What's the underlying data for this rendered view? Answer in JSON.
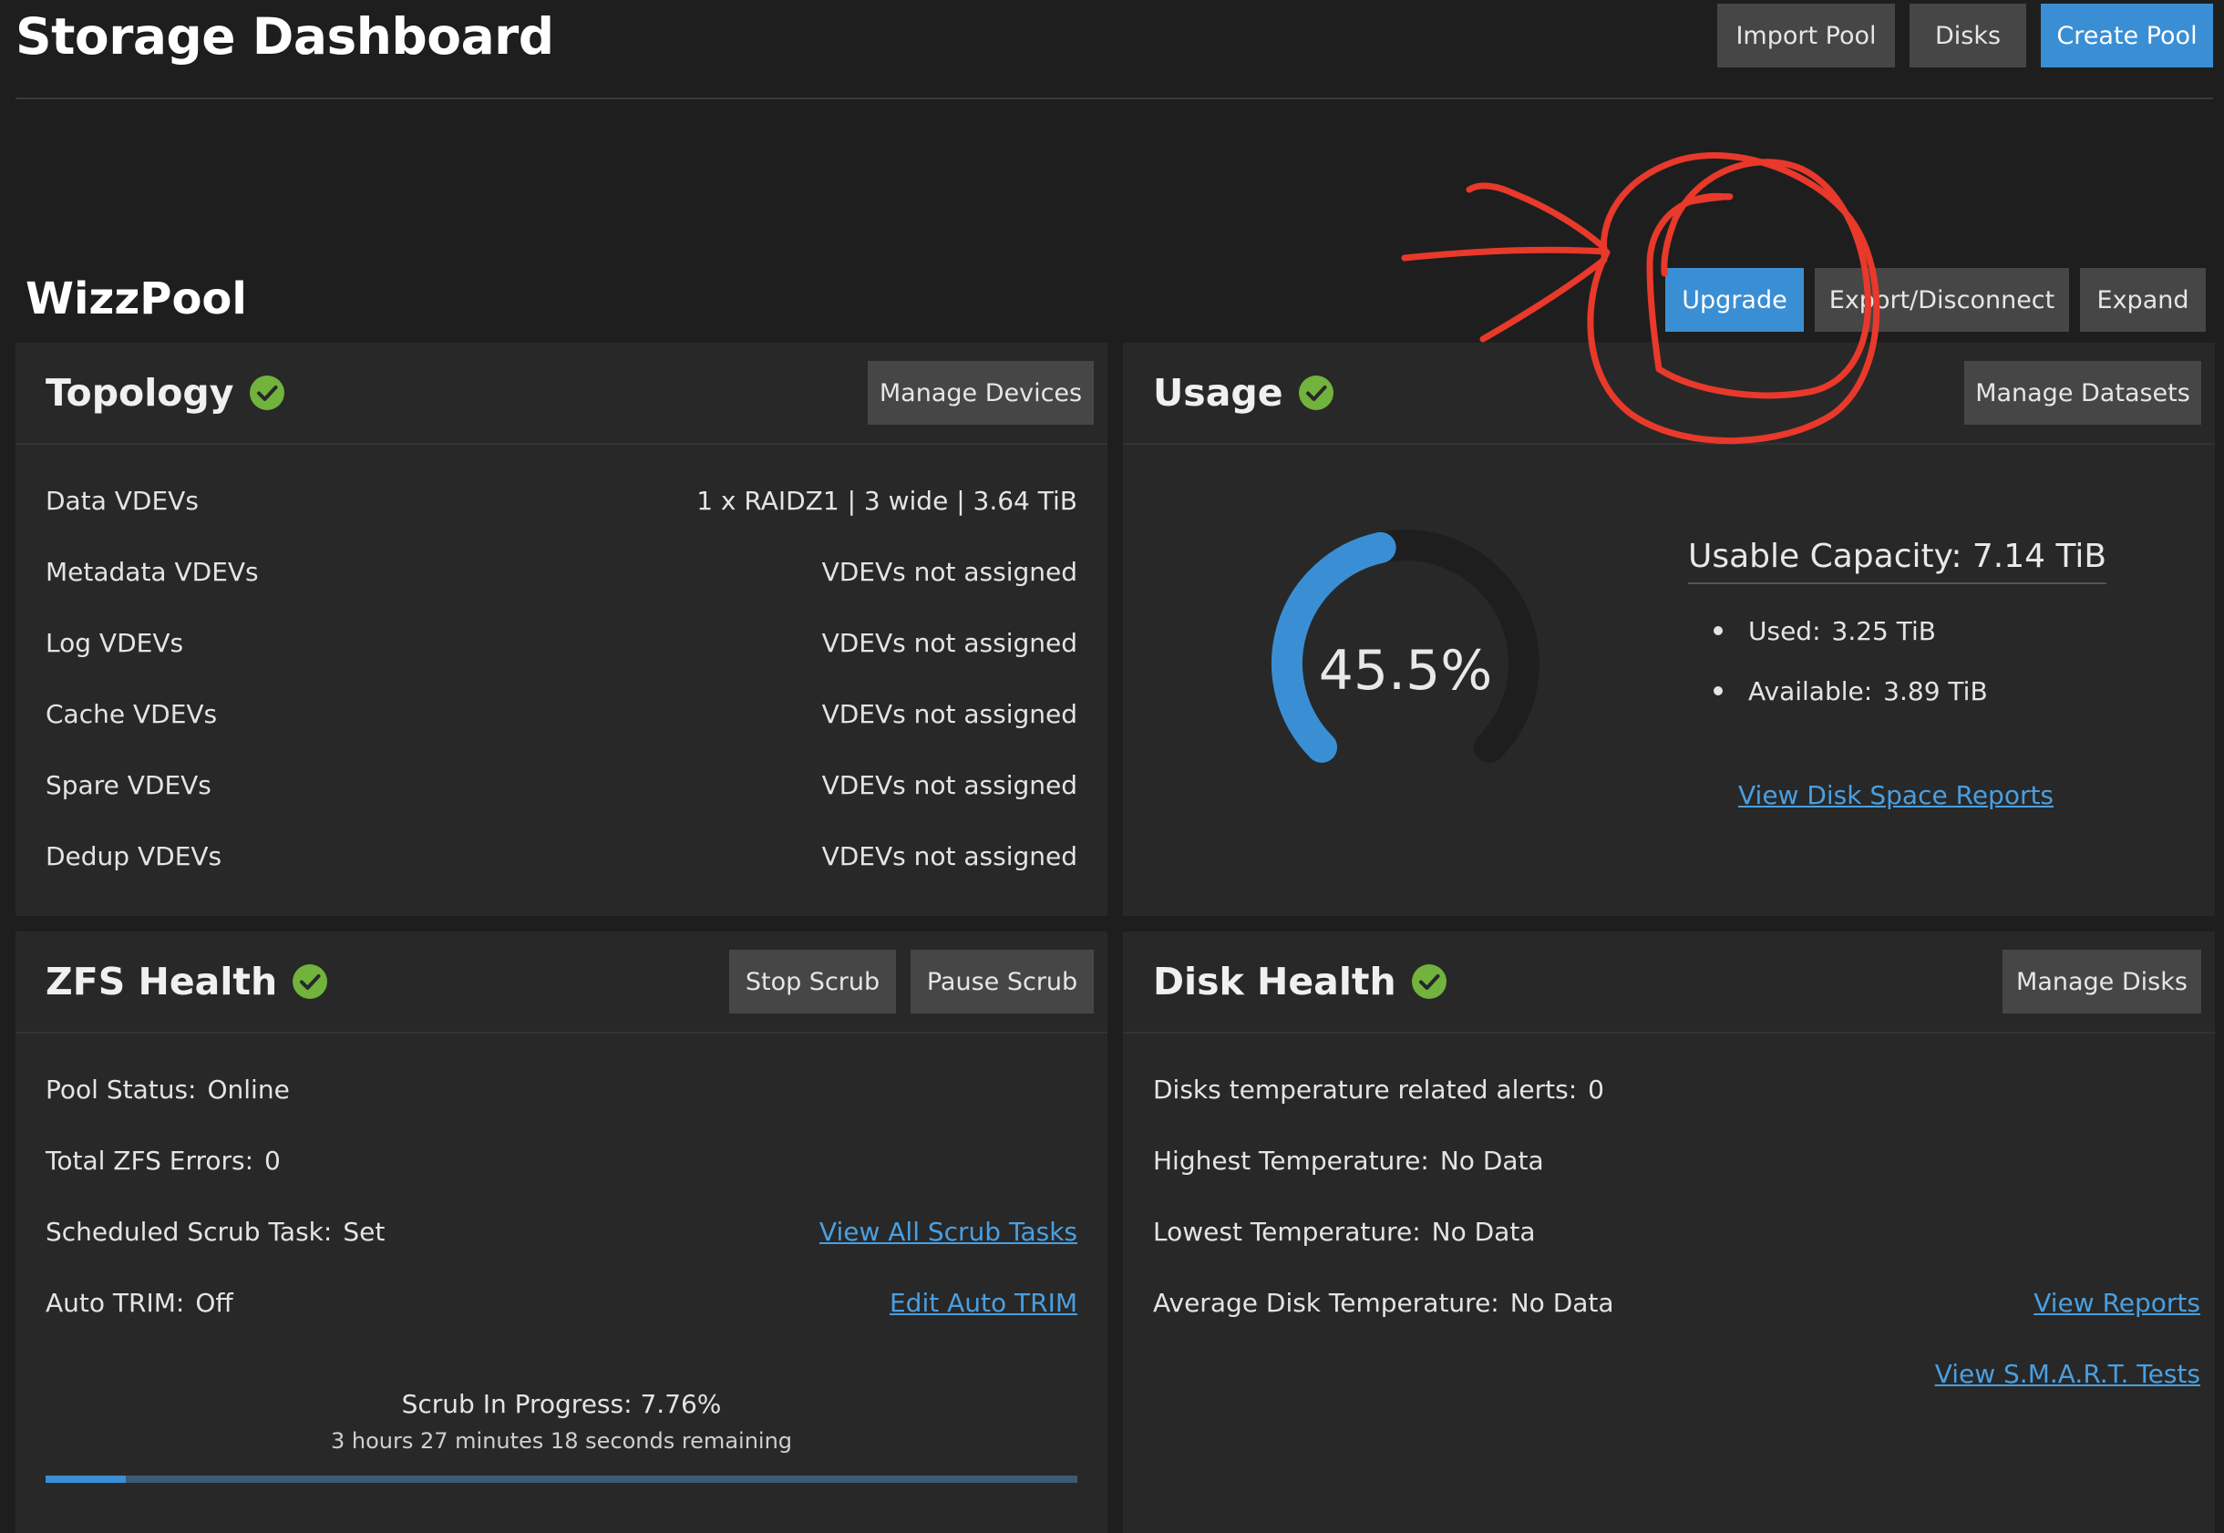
{
  "page": {
    "title": "Storage Dashboard",
    "actions": {
      "import_pool": "Import Pool",
      "disks": "Disks",
      "create_pool": "Create Pool"
    }
  },
  "pool": {
    "name": "WizzPool",
    "actions": {
      "upgrade": "Upgrade",
      "export": "Export/Disconnect",
      "expand": "Expand"
    }
  },
  "topology": {
    "title": "Topology",
    "manage_button": "Manage Devices",
    "rows": [
      {
        "label": "Data VDEVs",
        "value": "1 x RAIDZ1 | 3 wide | 3.64 TiB"
      },
      {
        "label": "Metadata VDEVs",
        "value": "VDEVs not assigned"
      },
      {
        "label": "Log VDEVs",
        "value": "VDEVs not assigned"
      },
      {
        "label": "Cache VDEVs",
        "value": "VDEVs not assigned"
      },
      {
        "label": "Spare VDEVs",
        "value": "VDEVs not assigned"
      },
      {
        "label": "Dedup VDEVs",
        "value": "VDEVs not assigned"
      }
    ]
  },
  "usage": {
    "title": "Usage",
    "manage_button": "Manage Datasets",
    "percent_label": "45.5%",
    "percent": 45.5,
    "capacity_label": "Usable Capacity:",
    "capacity_value": "7.14 TiB",
    "used_label": "Used:",
    "used_value": "3.25 TiB",
    "available_label": "Available:",
    "available_value": "3.89 TiB",
    "report_link": "View Disk Space Reports"
  },
  "zfs_health": {
    "title": "ZFS Health",
    "stop_button": "Stop Scrub",
    "pause_button": "Pause Scrub",
    "pool_status_label": "Pool Status:",
    "pool_status_value": "Online",
    "errors_label": "Total ZFS Errors:",
    "errors_value": "0",
    "scrub_task_label": "Scheduled Scrub Task:",
    "scrub_task_value": "Set",
    "scrub_tasks_link": "View All Scrub Tasks",
    "trim_label": "Auto TRIM:",
    "trim_value": "Off",
    "trim_link": "Edit Auto TRIM",
    "scrub_progress_label": "Scrub In Progress: 7.76%",
    "scrub_progress_value": 7.76,
    "scrub_remaining": "3 hours 27 minutes 18 seconds remaining"
  },
  "disk_health": {
    "title": "Disk Health",
    "manage_button": "Manage Disks",
    "temp_alerts_label": "Disks temperature related alerts:",
    "temp_alerts_value": "0",
    "highest_label": "Highest Temperature:",
    "highest_value": "No Data",
    "lowest_label": "Lowest Temperature:",
    "lowest_value": "No Data",
    "avg_label": "Average Disk Temperature:",
    "avg_value": "No Data",
    "reports_link": "View Reports",
    "smart_link": "View S.M.A.R.T. Tests"
  },
  "colors": {
    "accent": "#3a8fd4",
    "healthy": "#71b33c",
    "annotation": "#e8392b"
  }
}
